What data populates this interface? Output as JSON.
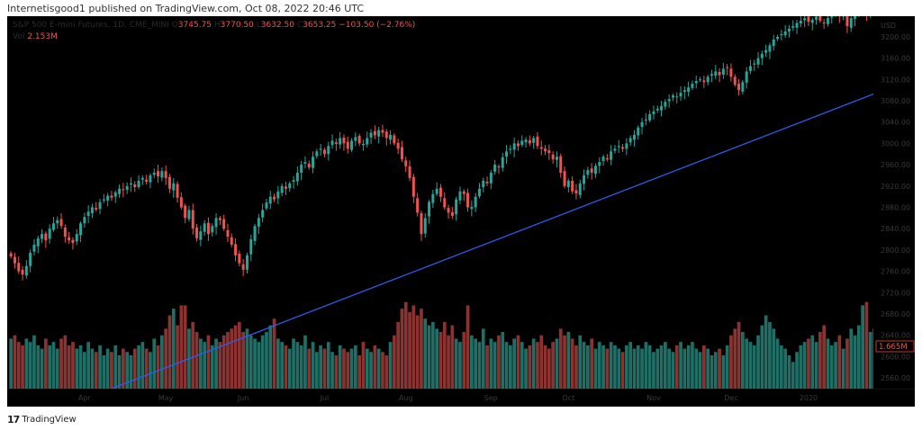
{
  "header": {
    "published": "Internetisgood1 published on TradingView.com, Oct 08, 2022 20:46 UTC"
  },
  "legend": {
    "symbol": "S&P 500 E-mini Futures, 1D, CME_MINI",
    "o_label": "O",
    "open": "3745.75",
    "h_label": "H",
    "high": "3770.50",
    "l_label": "L",
    "low": "3632.50",
    "c_label": "C",
    "close": "3653.25",
    "change": "−103.50 (−2.76%)",
    "vol_label": "Vol",
    "vol": "2.153M"
  },
  "footer": {
    "logo_text": "TradingView"
  },
  "chart_data": {
    "type": "candlestick",
    "currency": "USD",
    "y_ticks": [
      "3200.00",
      "3160.00",
      "3120.00",
      "3080.00",
      "3040.00",
      "3000.00",
      "2960.00",
      "2920.00",
      "2880.00",
      "2840.00",
      "2800.00",
      "2760.00",
      "2720.00",
      "2680.00",
      "2640.00",
      "2600.00",
      "2560.00"
    ],
    "x_ticks": [
      {
        "label": "Apr",
        "bar": 19
      },
      {
        "label": "May",
        "bar": 40
      },
      {
        "label": "Jun",
        "bar": 60
      },
      {
        "label": "Jul",
        "bar": 81
      },
      {
        "label": "Aug",
        "bar": 102
      },
      {
        "label": "Sep",
        "bar": 124
      },
      {
        "label": "Oct",
        "bar": 144
      },
      {
        "label": "Nov",
        "bar": 166
      },
      {
        "label": "Dec",
        "bar": 186
      },
      {
        "label": "2020",
        "bar": 206
      }
    ],
    "volume_label": "1.665M",
    "colors": {
      "up": "#26a69a",
      "down": "#ef5350",
      "vol_up": "#1f6f66",
      "vol_down": "#8a3330",
      "trendline": "#2f5bea",
      "background": "#000000"
    },
    "closes": [
      2788,
      2775,
      2760,
      2754,
      2770,
      2795,
      2810,
      2822,
      2830,
      2818,
      2840,
      2850,
      2856,
      2845,
      2825,
      2818,
      2813,
      2830,
      2850,
      2862,
      2872,
      2880,
      2876,
      2890,
      2895,
      2902,
      2898,
      2908,
      2915,
      2912,
      2920,
      2925,
      2918,
      2930,
      2935,
      2928,
      2940,
      2945,
      2938,
      2948,
      2935,
      2915,
      2925,
      2898,
      2880,
      2860,
      2875,
      2840,
      2822,
      2835,
      2850,
      2830,
      2845,
      2860,
      2856,
      2840,
      2825,
      2810,
      2790,
      2775,
      2763,
      2790,
      2820,
      2845,
      2860,
      2875,
      2889,
      2900,
      2895,
      2910,
      2920,
      2915,
      2925,
      2931,
      2945,
      2960,
      2965,
      2955,
      2975,
      2985,
      2990,
      2980,
      2995,
      3005,
      2999,
      3010,
      3000,
      2990,
      3005,
      3012,
      3000,
      2999,
      3010,
      3020,
      3015,
      3025,
      3020,
      3010,
      3016,
      3000,
      2990,
      2970,
      2957,
      2935,
      2900,
      2870,
      2830,
      2860,
      2890,
      2905,
      2915,
      2900,
      2880,
      2870,
      2864,
      2895,
      2910,
      2905,
      2880,
      2881,
      2900,
      2915,
      2930,
      2925,
      2945,
      2960,
      2955,
      2974,
      2985,
      2990,
      3000,
      2995,
      3005,
      3007,
      3000,
      3010,
      2995,
      2990,
      2985,
      2982,
      2970,
      2975,
      2945,
      2920,
      2930,
      2910,
      2906,
      2925,
      2940,
      2950,
      2945,
      2958,
      2965,
      2975,
      2970,
      2985,
      2990,
      2995,
      2990,
      3000,
      3010,
      3016,
      3030,
      3040,
      3045,
      3055,
      3060,
      3065,
      3070,
      3078,
      3083,
      3090,
      3088,
      3095,
      3100,
      3105,
      3112,
      3117,
      3120,
      3115,
      3125,
      3130,
      3135,
      3128,
      3140,
      3142,
      3125,
      3110,
      3100,
      3115,
      3135,
      3145,
      3150,
      3160,
      3168,
      3175,
      3184,
      3195,
      3200,
      3205,
      3210,
      3215,
      3220,
      3226,
      3230,
      3235,
      3228,
      3232,
      3238,
      3230,
      3225,
      3235,
      3240,
      3245,
      3238,
      3250,
      3220,
      3235,
      3245,
      3250,
      3255,
      3240,
      3248,
      3252
    ],
    "volumes_millions": [
      1.5,
      1.6,
      1.4,
      1.3,
      1.5,
      1.4,
      1.6,
      1.3,
      1.2,
      1.5,
      1.3,
      1.4,
      1.2,
      1.5,
      1.6,
      1.3,
      1.4,
      1.2,
      1.3,
      1.1,
      1.4,
      1.2,
      1.1,
      1.3,
      1.0,
      1.2,
      1.1,
      1.3,
      1.0,
      1.2,
      1.1,
      1.0,
      1.2,
      1.3,
      1.4,
      1.2,
      1.1,
      1.5,
      1.3,
      1.6,
      1.8,
      2.2,
      2.4,
      1.9,
      2.5,
      2.5,
      1.8,
      2.0,
      1.7,
      1.5,
      1.4,
      1.6,
      1.3,
      1.5,
      1.4,
      1.6,
      1.7,
      1.8,
      1.9,
      2.0,
      1.7,
      1.8,
      1.6,
      1.5,
      1.4,
      1.6,
      1.7,
      1.9,
      2.1,
      1.5,
      1.4,
      1.3,
      1.2,
      1.5,
      1.4,
      1.3,
      1.6,
      1.2,
      1.4,
      1.1,
      1.3,
      1.2,
      1.4,
      1.1,
      1.0,
      1.3,
      1.2,
      1.1,
      1.2,
      1.3,
      1.0,
      1.4,
      1.2,
      1.1,
      1.3,
      1.2,
      1.1,
      1.0,
      1.4,
      1.6,
      2.0,
      2.4,
      2.6,
      2.3,
      2.5,
      2.2,
      2.4,
      2.1,
      1.9,
      2.0,
      1.8,
      1.7,
      2.0,
      1.6,
      1.9,
      1.5,
      1.4,
      1.7,
      2.5,
      1.6,
      1.5,
      1.4,
      1.8,
      1.3,
      1.5,
      1.4,
      1.6,
      1.7,
      1.4,
      1.3,
      1.5,
      1.6,
      1.4,
      1.2,
      1.3,
      1.5,
      1.4,
      1.6,
      1.3,
      1.2,
      1.4,
      1.5,
      1.8,
      1.6,
      1.7,
      1.5,
      1.3,
      1.6,
      1.4,
      1.3,
      1.5,
      1.2,
      1.4,
      1.3,
      1.2,
      1.4,
      1.3,
      1.2,
      1.1,
      1.3,
      1.4,
      1.2,
      1.3,
      1.2,
      1.4,
      1.3,
      1.1,
      1.2,
      1.3,
      1.4,
      1.2,
      1.1,
      1.3,
      1.4,
      1.2,
      1.3,
      1.4,
      1.2,
      1.1,
      1.3,
      1.2,
      1.0,
      1.1,
      1.2,
      1.0,
      1.3,
      1.6,
      1.8,
      2.0,
      1.7,
      1.5,
      1.4,
      1.3,
      1.6,
      1.9,
      2.2,
      2.0,
      1.8,
      1.5,
      1.3,
      1.2,
      1.0,
      0.8,
      1.1,
      1.3,
      1.4,
      1.5,
      1.6,
      1.4,
      1.7,
      1.9,
      1.5,
      1.3,
      1.4,
      1.6,
      1.2,
      1.5,
      1.8,
      1.6,
      1.9,
      2.5,
      2.6,
      1.7,
      1.8
    ],
    "trendline": {
      "start": {
        "bar": 26,
        "price": 2540
      },
      "end": {
        "bar": 224,
        "price": 3096
      }
    }
  }
}
